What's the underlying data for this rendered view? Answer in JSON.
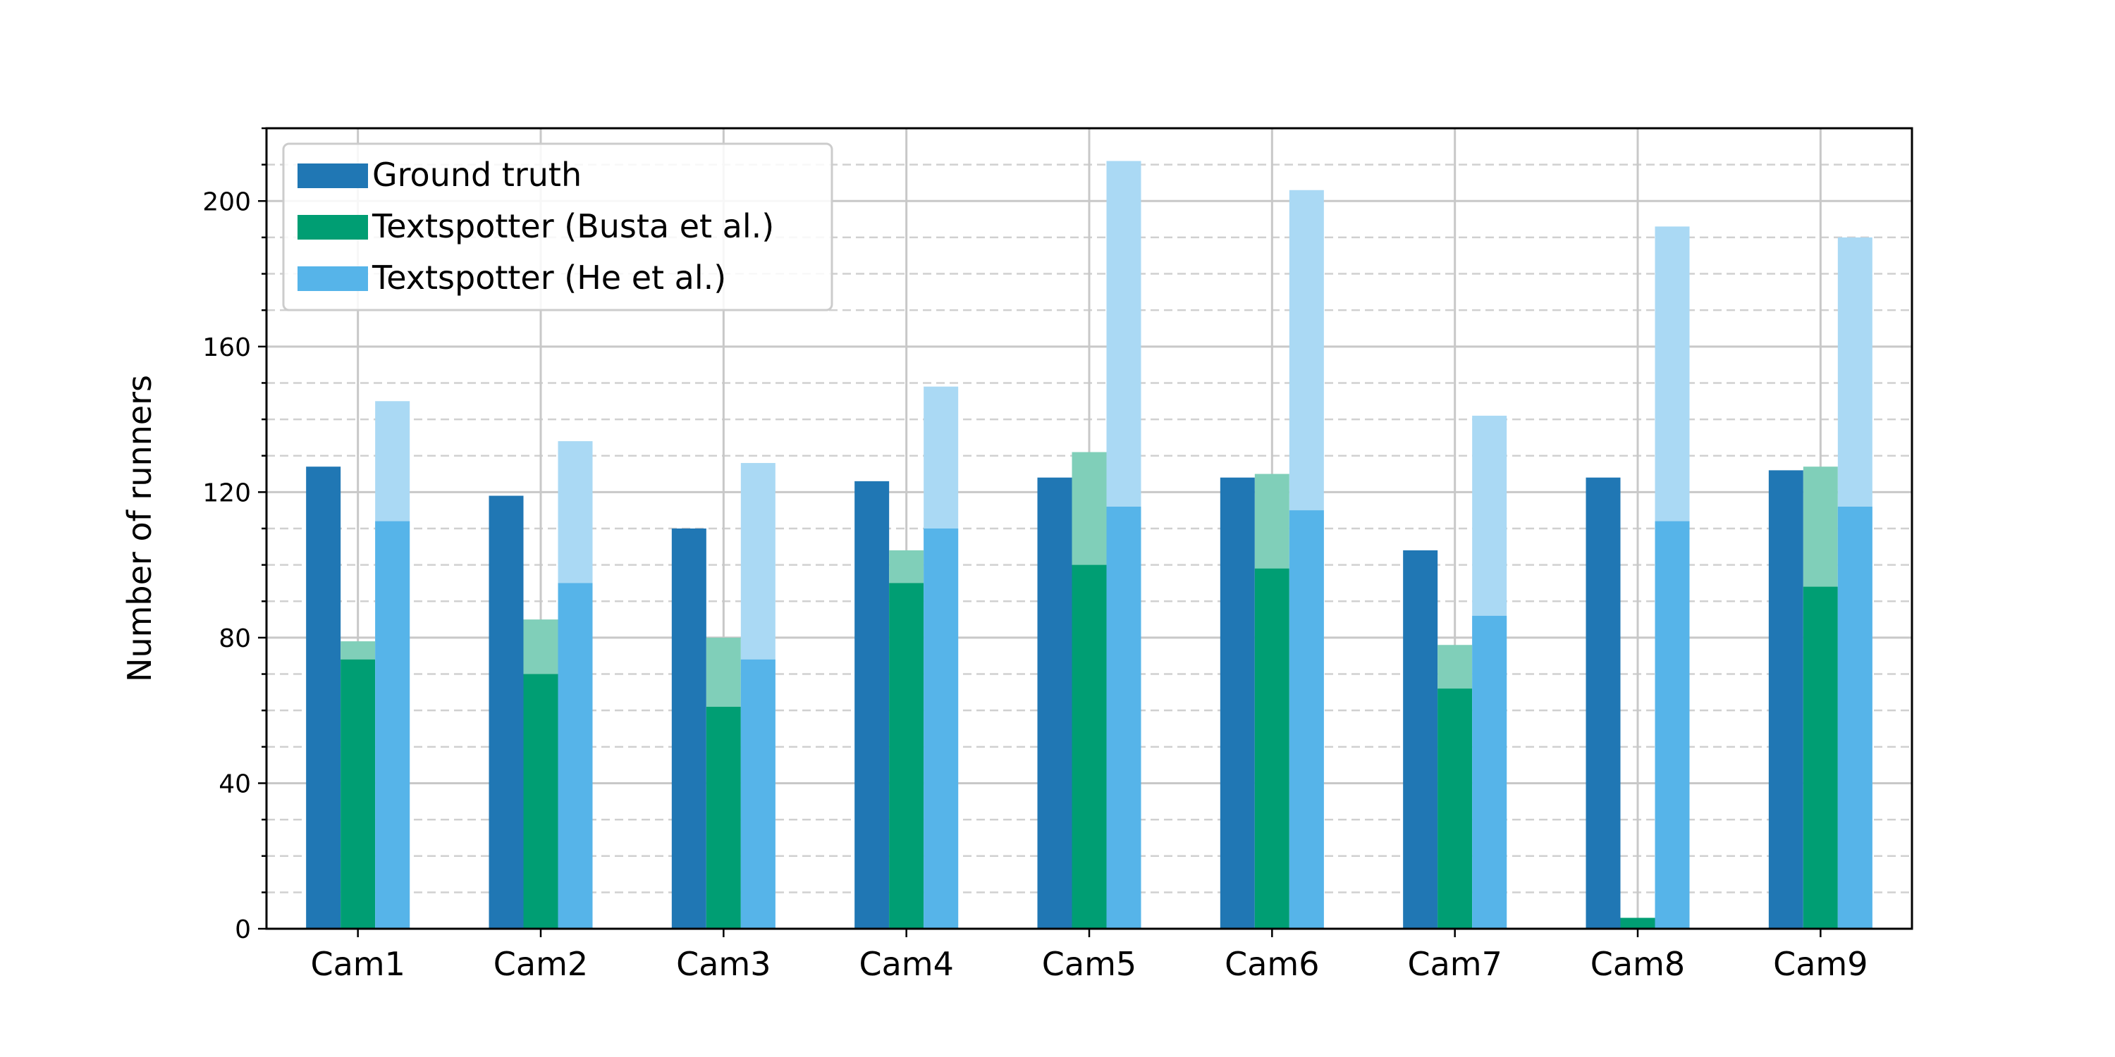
{
  "chart_data": {
    "type": "bar",
    "title": "",
    "xlabel": "",
    "ylabel": "Number of runners",
    "ylim": [
      0,
      220
    ],
    "yticks": [
      0,
      40,
      80,
      120,
      160,
      200
    ],
    "grid": true,
    "legend_position": "top-left",
    "categories": [
      "Cam1",
      "Cam2",
      "Cam3",
      "Cam4",
      "Cam5",
      "Cam6",
      "Cam7",
      "Cam8",
      "Cam9"
    ],
    "series": [
      {
        "name": "Ground truth",
        "color": "#2077b4",
        "values": [
          127,
          119,
          110,
          123,
          124,
          124,
          104,
          124,
          126
        ]
      },
      {
        "name": "Textspotter (Busta et al.)",
        "color": "#009e73",
        "light_color": "#80cfb9",
        "values": [
          74,
          70,
          61,
          95,
          100,
          99,
          66,
          3,
          94
        ],
        "upper_values": [
          79,
          85,
          80,
          104,
          131,
          125,
          78,
          3,
          127
        ]
      },
      {
        "name": "Textspotter (He et al.)",
        "color": "#56b4e9",
        "light_color": "#aad9f4",
        "values": [
          112,
          95,
          74,
          110,
          116,
          115,
          86,
          112,
          116
        ],
        "upper_values": [
          145,
          134,
          128,
          149,
          211,
          203,
          141,
          193,
          190
        ]
      }
    ]
  }
}
